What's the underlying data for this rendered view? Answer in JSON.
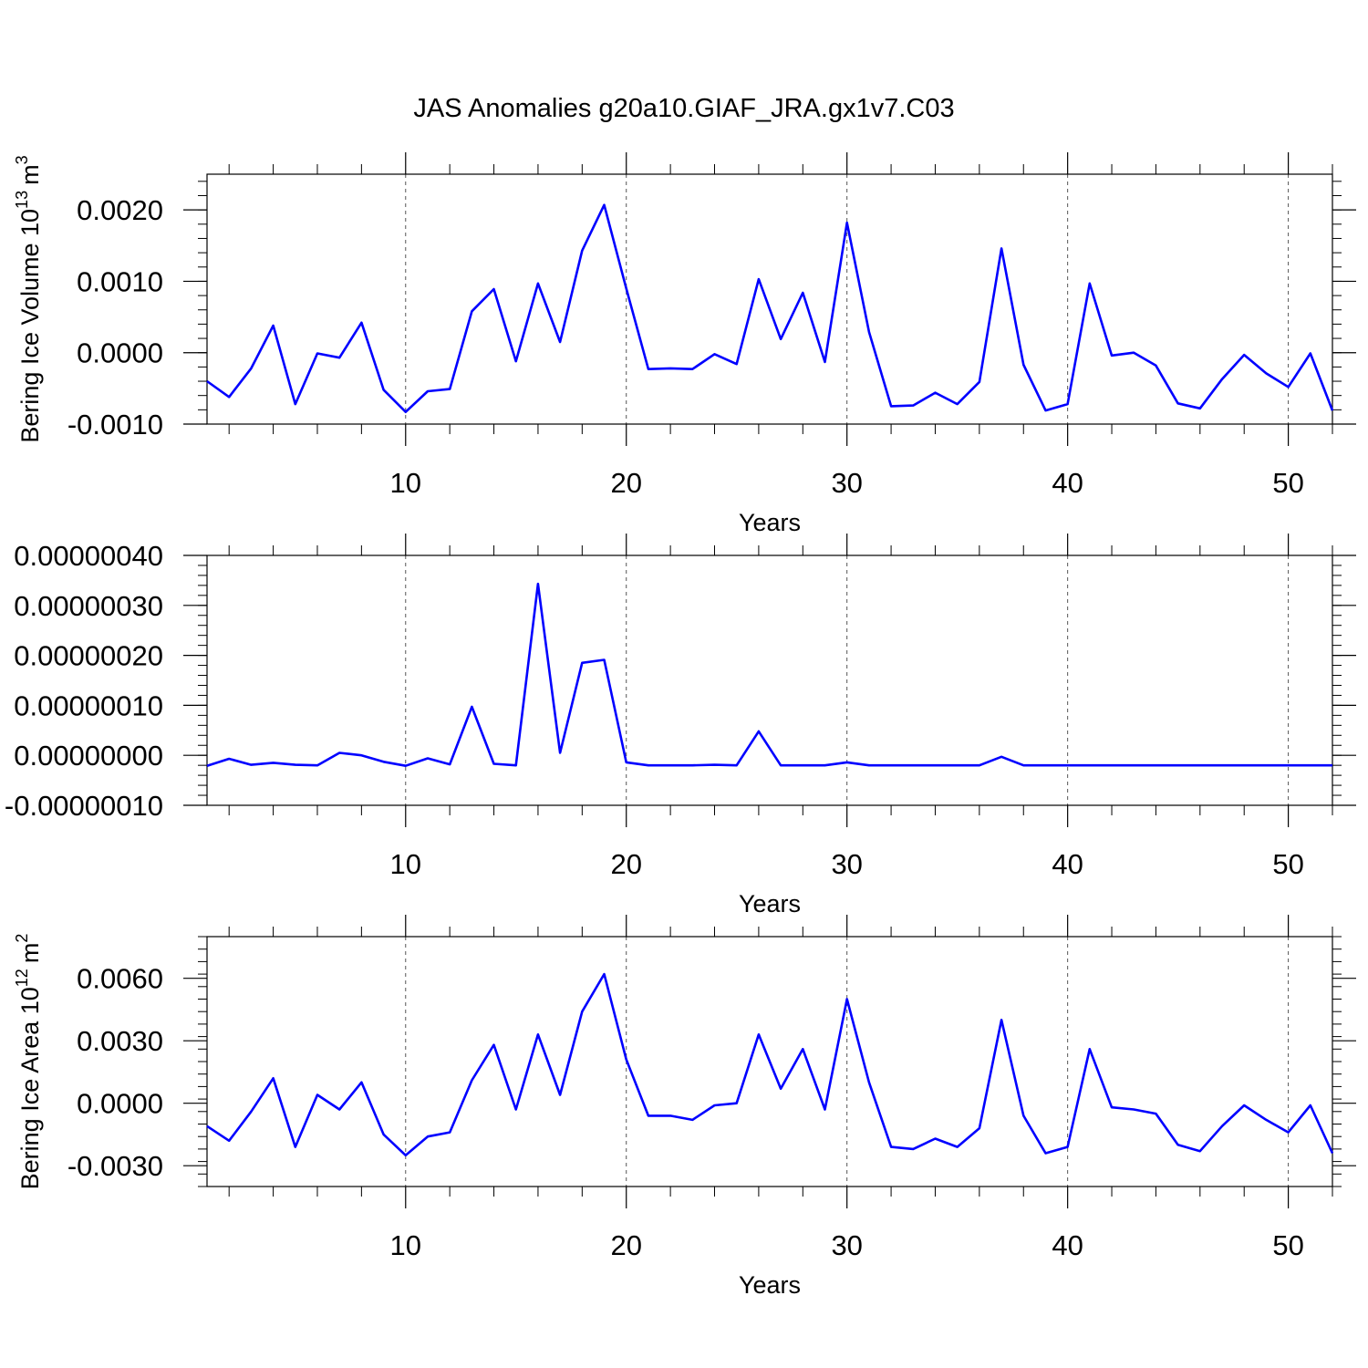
{
  "figure": {
    "title": "JAS Anomalies g20a10.GIAF_JRA.gx1v7.C03"
  },
  "style": {
    "line_color": "#0000ff",
    "grid_color": "#555555",
    "axis_color": "#000000"
  },
  "chart_data": [
    {
      "type": "line",
      "title": "JAS Anomalies g20a10.GIAF_JRA.gx1v7.C03",
      "xlabel": "Years",
      "ylabel": "Bering Ice Volume 10",
      "ylabel_exp": "13",
      "ylabel_unit": "m",
      "ylabel_unit_exp": "3",
      "xlim": [
        1,
        52
      ],
      "ylim": [
        -0.001,
        0.0025
      ],
      "xticks": [
        10,
        20,
        30,
        40,
        50
      ],
      "yticks": [
        -0.001,
        0.0,
        0.001,
        0.002
      ],
      "ytick_labels": [
        "-0.0010",
        "0.0000",
        "0.0010",
        "0.0020"
      ],
      "y_minor_step": 0.0002,
      "x_minor_step": 2,
      "grid_x": true,
      "series": [
        {
          "x": [
            1,
            2,
            3,
            4,
            5,
            6,
            7,
            8,
            9,
            10,
            11,
            12,
            13,
            14,
            15,
            16,
            17,
            18,
            19,
            20,
            21,
            22,
            23,
            24,
            25,
            26,
            27,
            28,
            29,
            30,
            31,
            32,
            33,
            34,
            35,
            36,
            37,
            38,
            39,
            40,
            41,
            42,
            43,
            44,
            45,
            46,
            47,
            48,
            49,
            50,
            51,
            52
          ],
          "values": [
            -0.0004,
            -0.00062,
            -0.00022,
            0.00038,
            -0.00072,
            -1e-05,
            -7e-05,
            0.00042,
            -0.00052,
            -0.00083,
            -0.00054,
            -0.00051,
            0.00058,
            0.00089,
            -0.00012,
            0.00097,
            0.00015,
            0.00143,
            0.00207,
            0.0009,
            -0.00023,
            -0.00022,
            -0.00023,
            -2e-05,
            -0.00016,
            0.00103,
            0.00019,
            0.00084,
            -0.00013,
            0.00182,
            0.00029,
            -0.00075,
            -0.00074,
            -0.00056,
            -0.00072,
            -0.00041,
            0.00146,
            -0.00017,
            -0.00081,
            -0.00072,
            0.00097,
            -4e-05,
            0.0,
            -0.00018,
            -0.00071,
            -0.00078,
            -0.00037,
            -3e-05,
            -0.00029,
            -0.00048,
            -1e-05,
            -0.00081
          ]
        }
      ]
    },
    {
      "type": "line",
      "xlabel": "Years",
      "ylabel": "",
      "xlim": [
        1,
        52
      ],
      "ylim": [
        -1e-07,
        4e-07
      ],
      "xticks": [
        10,
        20,
        30,
        40,
        50
      ],
      "yticks": [
        -1e-07,
        0.0,
        1e-07,
        2e-07,
        3e-07,
        4e-07
      ],
      "ytick_labels": [
        "-0.00000010",
        "0.00000000",
        "0.00000010",
        "0.00000020",
        "0.00000030",
        "0.00000040"
      ],
      "y_minor_step": 2e-08,
      "x_minor_step": 2,
      "grid_x": true,
      "series": [
        {
          "x": [
            1,
            2,
            3,
            4,
            5,
            6,
            7,
            8,
            9,
            10,
            11,
            12,
            13,
            14,
            15,
            16,
            17,
            18,
            19,
            20,
            21,
            22,
            23,
            24,
            25,
            26,
            27,
            28,
            29,
            30,
            31,
            32,
            33,
            34,
            35,
            36,
            37,
            38,
            39,
            40,
            41,
            42,
            43,
            44,
            45,
            46,
            47,
            48,
            49,
            50,
            51,
            52
          ],
          "values": [
            -2.1e-08,
            -7e-09,
            -1.9e-08,
            -1.5e-08,
            -1.9e-08,
            -2e-08,
            5e-09,
            0.0,
            -1.3e-08,
            -2.1e-08,
            -6e-09,
            -1.8e-08,
            9.7e-08,
            -1.7e-08,
            -2e-08,
            3.43e-07,
            5e-09,
            1.85e-07,
            1.91e-07,
            -1.4e-08,
            -2e-08,
            -2e-08,
            -2e-08,
            -1.9e-08,
            -2e-08,
            4.8e-08,
            -2e-08,
            -2e-08,
            -2e-08,
            -1.4e-08,
            -2e-08,
            -2e-08,
            -2e-08,
            -2e-08,
            -2e-08,
            -2e-08,
            -3e-09,
            -2e-08,
            -2e-08,
            -2e-08,
            -2e-08,
            -2e-08,
            -2e-08,
            -2e-08,
            -2e-08,
            -2e-08,
            -2e-08,
            -2e-08,
            -2e-08,
            -2e-08,
            -2e-08,
            -2e-08
          ]
        }
      ]
    },
    {
      "type": "line",
      "xlabel": "Years",
      "ylabel": "Bering Ice Area 10",
      "ylabel_exp": "12",
      "ylabel_unit": "m",
      "ylabel_unit_exp": "2",
      "xlim": [
        1,
        52
      ],
      "ylim": [
        -0.004,
        0.008
      ],
      "xticks": [
        10,
        20,
        30,
        40,
        50
      ],
      "yticks": [
        -0.003,
        0.0,
        0.003,
        0.006
      ],
      "ytick_labels": [
        "-0.0030",
        "0.0000",
        "0.0030",
        "0.0060"
      ],
      "y_minor_step": 0.0006,
      "x_minor_step": 2,
      "grid_x": true,
      "series": [
        {
          "x": [
            1,
            2,
            3,
            4,
            5,
            6,
            7,
            8,
            9,
            10,
            11,
            12,
            13,
            14,
            15,
            16,
            17,
            18,
            19,
            20,
            21,
            22,
            23,
            24,
            25,
            26,
            27,
            28,
            29,
            30,
            31,
            32,
            33,
            34,
            35,
            36,
            37,
            38,
            39,
            40,
            41,
            42,
            43,
            44,
            45,
            46,
            47,
            48,
            49,
            50,
            51,
            52
          ],
          "values": [
            -0.0011,
            -0.0018,
            -0.0004,
            0.0012,
            -0.0021,
            0.0004,
            -0.0003,
            0.001,
            -0.0015,
            -0.0025,
            -0.0016,
            -0.0014,
            0.0011,
            0.0028,
            -0.0003,
            0.0033,
            0.0004,
            0.0044,
            0.0062,
            0.0021,
            -0.0006,
            -0.0006,
            -0.0008,
            -0.0001,
            0.0,
            0.0033,
            0.0007,
            0.0026,
            -0.0003,
            0.005,
            0.001,
            -0.0021,
            -0.0022,
            -0.0017,
            -0.0021,
            -0.0012,
            0.004,
            -0.0006,
            -0.0024,
            -0.0021,
            0.0026,
            -0.0002,
            -0.0003,
            -0.0005,
            -0.002,
            -0.0023,
            -0.0011,
            -0.0001,
            -0.0008,
            -0.0014,
            -0.0001,
            -0.0024
          ]
        }
      ]
    }
  ]
}
